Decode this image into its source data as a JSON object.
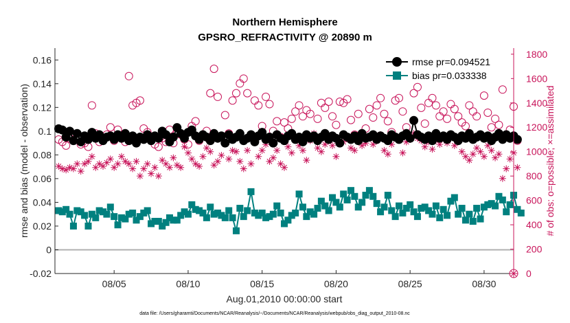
{
  "chart_data": {
    "type": "line",
    "title_line1": "Northern Hemisphere",
    "title_line2": "GPSRO_REFRACTIVITY @ 20890 m",
    "xlabel": "Aug.01,2010 00:00:00 start",
    "ylabel_left": "rmse and bias (model - observation)",
    "ylabel_right": "# of obs: o=possible; ×=assimilated",
    "footer": "data file: /Users/gharamti/Documents/NCAR/Reanalysis/~/Documents/NCAR/Reanalysis/webpub/obs_diag_output_2010-08.nc",
    "x_range": [
      1.0,
      32.0
    ],
    "ylim_left": [
      -0.02,
      0.17
    ],
    "ylim_right": [
      0,
      1850
    ],
    "x_ticks": [
      {
        "value": 5,
        "label": "08/05"
      },
      {
        "value": 10,
        "label": "08/10"
      },
      {
        "value": 15,
        "label": "08/15"
      },
      {
        "value": 20,
        "label": "08/20"
      },
      {
        "value": 25,
        "label": "08/25"
      },
      {
        "value": 30,
        "label": "08/30"
      }
    ],
    "y_ticks_left": [
      {
        "value": -0.02,
        "label": "-0.02"
      },
      {
        "value": 0,
        "label": "0"
      },
      {
        "value": 0.02,
        "label": "0.02"
      },
      {
        "value": 0.04,
        "label": "0.04"
      },
      {
        "value": 0.06,
        "label": "0.06"
      },
      {
        "value": 0.08,
        "label": "0.08"
      },
      {
        "value": 0.1,
        "label": "0.1"
      },
      {
        "value": 0.12,
        "label": "0.12"
      },
      {
        "value": 0.14,
        "label": "0.14"
      },
      {
        "value": 0.16,
        "label": "0.16"
      }
    ],
    "y_ticks_right": [
      {
        "value": 0,
        "label": "0"
      },
      {
        "value": 200,
        "label": "200"
      },
      {
        "value": 400,
        "label": "400"
      },
      {
        "value": 600,
        "label": "600"
      },
      {
        "value": 800,
        "label": "800"
      },
      {
        "value": 1000,
        "label": "1000"
      },
      {
        "value": 1200,
        "label": "1200"
      },
      {
        "value": 1400,
        "label": "1400"
      },
      {
        "value": 1600,
        "label": "1600"
      },
      {
        "value": 1800,
        "label": "1800"
      }
    ],
    "x_start": 1.25,
    "x_step": 0.25,
    "series": [
      {
        "name": "rmse",
        "legend": "rmse pr=0.094521",
        "axis": "left",
        "color": "#000000",
        "marker": "circle",
        "values": [
          0.102,
          0.101,
          0.095,
          0.1,
          0.092,
          0.098,
          0.091,
          0.096,
          0.093,
          0.099,
          0.094,
          0.097,
          0.092,
          0.095,
          0.096,
          0.093,
          0.097,
          0.094,
          0.098,
          0.092,
          0.096,
          0.09,
          0.095,
          0.093,
          0.097,
          0.092,
          0.096,
          0.094,
          0.1,
          0.097,
          0.091,
          0.095,
          0.103,
          0.098,
          0.094,
          0.099,
          0.101,
          0.096,
          0.093,
          0.097,
          0.095,
          0.092,
          0.098,
          0.094,
          0.096,
          0.09,
          0.097,
          0.093,
          0.095,
          0.098,
          0.092,
          0.094,
          0.097,
          0.091,
          0.096,
          0.099,
          0.093,
          0.095,
          0.09,
          0.097,
          0.094,
          0.092,
          0.096,
          0.098,
          0.093,
          0.095,
          0.091,
          0.097,
          0.094,
          0.096,
          0.092,
          0.095,
          0.098,
          0.093,
          0.096,
          0.094,
          0.09,
          0.097,
          0.095,
          0.093,
          0.096,
          0.092,
          0.098,
          0.094,
          0.095,
          0.097,
          0.093,
          0.096,
          0.094,
          0.092,
          0.097,
          0.095,
          0.093,
          0.096,
          0.098,
          0.094,
          0.109,
          0.097,
          0.095,
          0.093,
          0.096,
          0.092,
          0.098,
          0.094,
          0.096,
          0.093,
          0.097,
          0.095,
          0.092,
          0.096,
          0.094,
          0.098,
          0.093,
          0.095,
          0.097,
          0.094,
          0.096,
          0.092,
          0.095,
          0.098,
          0.093,
          0.097,
          0.094,
          0.096,
          0.093
        ]
      },
      {
        "name": "bias",
        "legend": "bias pr=0.033338",
        "axis": "left",
        "color": "#00807f",
        "marker": "square",
        "values": [
          0.033,
          0.032,
          0.034,
          0.03,
          0.02,
          0.033,
          0.032,
          0.029,
          0.02,
          0.03,
          0.027,
          0.033,
          0.032,
          0.03,
          0.036,
          0.028,
          0.021,
          0.027,
          0.026,
          0.03,
          0.031,
          0.025,
          0.028,
          0.031,
          0.033,
          0.022,
          0.024,
          0.024,
          0.02,
          0.023,
          0.027,
          0.025,
          0.025,
          0.029,
          0.032,
          0.03,
          0.038,
          0.034,
          0.033,
          0.031,
          0.027,
          0.036,
          0.03,
          0.031,
          0.029,
          0.027,
          0.033,
          0.027,
          0.016,
          0.035,
          0.028,
          0.033,
          0.049,
          0.031,
          0.029,
          0.031,
          0.027,
          0.028,
          0.03,
          0.037,
          0.031,
          0.022,
          0.025,
          0.029,
          0.031,
          0.047,
          0.036,
          0.028,
          0.032,
          0.03,
          0.035,
          0.041,
          0.037,
          0.033,
          0.044,
          0.04,
          0.036,
          0.047,
          0.042,
          0.05,
          0.045,
          0.036,
          0.04,
          0.046,
          0.05,
          0.045,
          0.039,
          0.032,
          0.036,
          0.046,
          0.033,
          0.028,
          0.037,
          0.031,
          0.035,
          0.038,
          0.032,
          0.028,
          0.035,
          0.036,
          0.033,
          0.03,
          0.037,
          0.027,
          0.034,
          0.029,
          0.041,
          0.044,
          0.03,
          0.035,
          0.025,
          0.03,
          0.024,
          0.035,
          0.026,
          0.036,
          0.038,
          0.039,
          0.037,
          0.045,
          0.042,
          0.032,
          0.038,
          0.046,
          0.034,
          0.031
        ]
      },
      {
        "name": "possible",
        "legend": "",
        "axis": "right",
        "color": "#c8145a",
        "marker": "open-circle",
        "values": [
          1100,
          1080,
          1050,
          1110,
          1090,
          1120,
          1060,
          1070,
          1040,
          1380,
          1150,
          1080,
          1110,
          1140,
          1200,
          1090,
          1180,
          1130,
          1080,
          1620,
          1380,
          1400,
          1420,
          1190,
          1160,
          1100,
          1060,
          1040,
          1110,
          1080,
          1180,
          1070,
          1150,
          1140,
          1100,
          1060,
          1210,
          1250,
          1090,
          1130,
          1170,
          1480,
          1680,
          1450,
          1130,
          1300,
          1150,
          1420,
          1480,
          1560,
          1600,
          1480,
          1130,
          1420,
          1380,
          1210,
          1450,
          1390,
          1170,
          1250,
          1120,
          1240,
          1190,
          1270,
          1330,
          1380,
          1290,
          1340,
          1310,
          1130,
          1270,
          1400,
          1360,
          1410,
          1290,
          1220,
          1410,
          1400,
          1430,
          1260,
          1140,
          1310,
          1150,
          1190,
          1350,
          1280,
          1380,
          1440,
          1310,
          1250,
          1160,
          1420,
          1440,
          1330,
          1200,
          1640,
          1480,
          1530,
          1360,
          1230,
          1400,
          1440,
          1380,
          1290,
          1330,
          1270,
          1390,
          1350,
          1290,
          1240,
          1210,
          1380,
          1330,
          1290,
          1140,
          1460,
          1320,
          1200,
          1270,
          1220,
          1510,
          1120,
          1180,
          1370,
          1090
        ]
      },
      {
        "name": "assimilated",
        "legend": "",
        "axis": "right",
        "color": "#c8145a",
        "marker": "asterisk",
        "values": [
          880,
          860,
          850,
          870,
          860,
          900,
          840,
          900,
          920,
          960,
          870,
          900,
          880,
          910,
          940,
          870,
          900,
          960,
          920,
          900,
          860,
          920,
          800,
          860,
          900,
          820,
          870,
          800,
          930,
          900,
          870,
          950,
          890,
          870,
          1040,
          990,
          940,
          900,
          880,
          960,
          1030,
          1000,
          890,
          920,
          970,
          1080,
          940,
          1010,
          1000,
          920,
          860,
          1010,
          900,
          1110,
          960,
          1010,
          1060,
          920,
          950,
          1010,
          900,
          870,
          1040,
          990,
          1110,
          1050,
          1010,
          930,
          1090,
          1150,
          1030,
          1000,
          1060,
          1090,
          1050,
          960,
          1090,
          1080,
          1120,
          1030,
          1010,
          1090,
          1050,
          1070,
          1120,
          1060,
          1090,
          1140,
          1010,
          980,
          1060,
          1130,
          1110,
          990,
          1080,
          1100,
          1150,
          1110,
          1090,
          1040,
          1080,
          1020,
          1090,
          1060,
          1120,
          1070,
          1110,
          1050,
          1100,
          1000,
          960,
          930,
          980,
          1030,
          1000,
          960,
          1050,
          1010,
          950,
          980,
          780,
          860,
          940,
          990,
          870
        ]
      }
    ]
  }
}
